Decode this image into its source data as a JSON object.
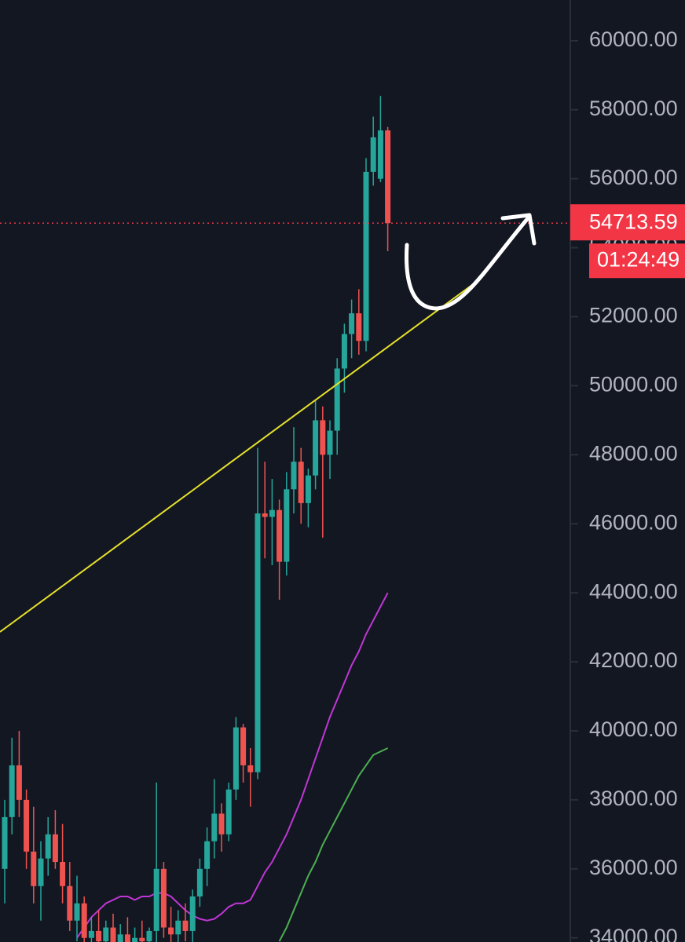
{
  "chart_data": {
    "type": "candlestick",
    "open": [
      36000,
      37500,
      39000,
      38000,
      36500,
      35500,
      36300,
      37000,
      36200,
      35500,
      34500,
      35000,
      34000,
      34200,
      33900,
      34300,
      33800,
      34100,
      33700,
      34000,
      33900,
      34200,
      36000,
      34300,
      34100,
      34500,
      34200,
      35200,
      36000,
      36800,
      37600,
      37000,
      38300,
      40100,
      39000,
      38800,
      46300,
      46200,
      46400,
      44900,
      47000,
      47800,
      46600,
      47400,
      49000,
      48000,
      48700,
      50500,
      51500,
      52100,
      51300,
      56200,
      56000,
      57400
    ],
    "high": [
      38000,
      39800,
      40000,
      38300,
      37800,
      36800,
      37500,
      37700,
      37300,
      36200,
      35800,
      35200,
      34600,
      34800,
      34500,
      34700,
      34400,
      34600,
      34300,
      34500,
      34300,
      38500,
      36200,
      34900,
      34800,
      35000,
      35400,
      36300,
      37200,
      38600,
      37900,
      38500,
      40400,
      40200,
      39500,
      48200,
      47800,
      47300,
      46700,
      47500,
      48800,
      48200,
      47600,
      49600,
      49400,
      49000,
      50800,
      51800,
      52500,
      52800,
      56600,
      57800,
      58400,
      57500
    ],
    "low": [
      35000,
      37000,
      37500,
      36000,
      35000,
      34500,
      35800,
      36000,
      35000,
      34200,
      33900,
      33800,
      33500,
      33600,
      33400,
      33700,
      33300,
      33500,
      33200,
      33600,
      33400,
      33600,
      34000,
      33800,
      33600,
      33900,
      33800,
      34900,
      35500,
      36300,
      36500,
      36800,
      38000,
      38500,
      37800,
      38600,
      45000,
      44800,
      43800,
      44500,
      46300,
      46000,
      45900,
      47000,
      45600,
      47300,
      48000,
      49800,
      50800,
      50900,
      51000,
      55800,
      55900,
      53900
    ],
    "close": [
      37500,
      39000,
      38000,
      36500,
      35500,
      36300,
      37000,
      36200,
      35500,
      34500,
      35000,
      34000,
      34200,
      33900,
      34300,
      33800,
      34100,
      33700,
      34000,
      33900,
      34200,
      36000,
      34300,
      34100,
      34500,
      34200,
      35200,
      36000,
      36800,
      37600,
      37000,
      38300,
      40100,
      39000,
      38800,
      46300,
      46200,
      46400,
      44900,
      47000,
      47800,
      46600,
      47400,
      49000,
      48000,
      48700,
      50500,
      51500,
      52100,
      51300,
      56200,
      57200,
      57400,
      54713.59
    ],
    "up_color": "#26a69a",
    "down_color": "#ef5350",
    "moving_averages": [
      {
        "color": "#c036d6",
        "values": [
          null,
          null,
          null,
          null,
          null,
          null,
          null,
          null,
          null,
          null,
          34000,
          34300,
          34600,
          34800,
          35000,
          35100,
          35200,
          35200,
          35100,
          35200,
          35200,
          35300,
          35300,
          35200,
          35000,
          34800,
          34650,
          34550,
          34500,
          34550,
          34700,
          34900,
          35000,
          35000,
          35100,
          35500,
          35900,
          36200,
          36600,
          37000,
          37500,
          38000,
          38600,
          39200,
          39800,
          40400,
          40900,
          41400,
          41900,
          42300,
          42800,
          43200,
          43600,
          44000
        ]
      },
      {
        "color": "#4caf50",
        "values": [
          null,
          null,
          null,
          null,
          null,
          null,
          null,
          null,
          null,
          null,
          null,
          null,
          null,
          null,
          null,
          null,
          null,
          null,
          null,
          null,
          null,
          null,
          null,
          null,
          null,
          null,
          null,
          null,
          null,
          null,
          null,
          null,
          null,
          null,
          null,
          null,
          null,
          null,
          33900,
          34300,
          34800,
          35300,
          35800,
          36200,
          36700,
          37100,
          37500,
          37900,
          38300,
          38700,
          39000,
          39300,
          39400,
          39500
        ]
      }
    ],
    "ylim": [
      33880,
      61180
    ],
    "yticks": [
      {
        "value": 34000,
        "label": "34000.00"
      },
      {
        "value": 36000,
        "label": "36000.00"
      },
      {
        "value": 38000,
        "label": "38000.00"
      },
      {
        "value": 40000,
        "label": "40000.00"
      },
      {
        "value": 42000,
        "label": "42000.00"
      },
      {
        "value": 44000,
        "label": "44000.00"
      },
      {
        "value": 46000,
        "label": "46000.00"
      },
      {
        "value": 48000,
        "label": "48000.00"
      },
      {
        "value": 50000,
        "label": "50000.00"
      },
      {
        "value": 52000,
        "label": "52000.00"
      },
      {
        "value": 54000,
        "label": "54000.00"
      },
      {
        "value": 56000,
        "label": "56000.00"
      },
      {
        "value": 58000,
        "label": "58000.00"
      },
      {
        "value": 60000,
        "label": "60000.00"
      }
    ],
    "price_line": {
      "value": 54713.59,
      "countdown": "01:24:49",
      "color": "#f23645"
    }
  }
}
